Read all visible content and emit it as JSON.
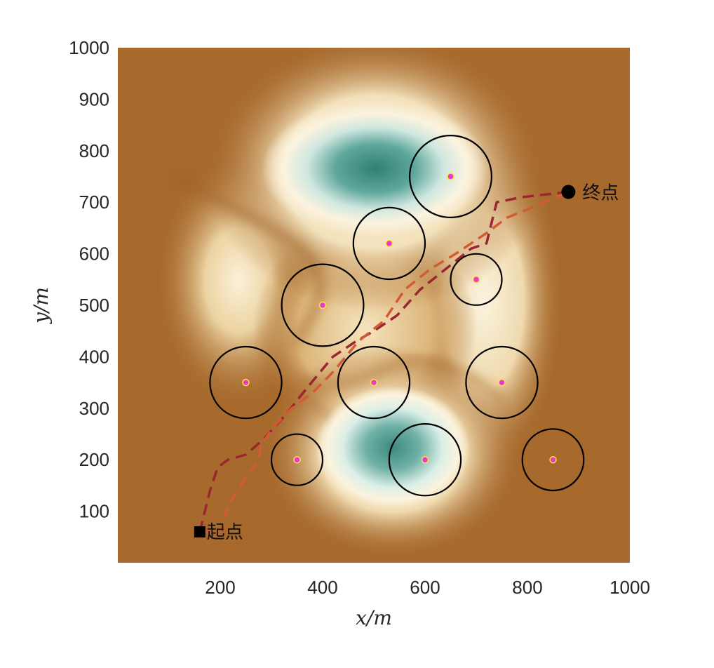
{
  "chart_data": {
    "type": "scatter",
    "title": "",
    "xlabel": "x/m",
    "ylabel": "y/m",
    "xlim": [
      0,
      1000
    ],
    "ylim": [
      0,
      1000
    ],
    "x_ticks": [
      200,
      400,
      600,
      800,
      1000
    ],
    "y_ticks": [
      100,
      200,
      300,
      400,
      500,
      600,
      700,
      800,
      900,
      1000
    ],
    "background": "terrain heatmap",
    "colors": {
      "terrain_low": "#a76a2c",
      "terrain_mid": "#fbf3df",
      "terrain_high": "#2f8074",
      "path_1": "#9b2530",
      "path_2": "#d45a33",
      "obstacle_ring": "#000000",
      "obstacle_center": "#e83ad0",
      "obstacle_center_edge": "#ffe040"
    },
    "obstacles": [
      {
        "x": 650,
        "y": 750,
        "r": 80
      },
      {
        "x": 530,
        "y": 620,
        "r": 70
      },
      {
        "x": 700,
        "y": 550,
        "r": 50
      },
      {
        "x": 400,
        "y": 500,
        "r": 80
      },
      {
        "x": 250,
        "y": 350,
        "r": 70
      },
      {
        "x": 500,
        "y": 350,
        "r": 70
      },
      {
        "x": 750,
        "y": 350,
        "r": 70
      },
      {
        "x": 350,
        "y": 200,
        "r": 50
      },
      {
        "x": 600,
        "y": 200,
        "r": 70
      },
      {
        "x": 850,
        "y": 200,
        "r": 60
      }
    ],
    "series": [
      {
        "x": [
          160,
          170,
          180,
          195,
          215,
          250,
          285,
          330,
          370,
          420,
          465,
          500,
          545,
          590,
          640,
          690,
          720,
          740,
          790,
          880
        ],
        "y": [
          60,
          100,
          140,
          185,
          200,
          210,
          240,
          290,
          340,
          400,
          430,
          450,
          480,
          530,
          570,
          610,
          620,
          700,
          710,
          720
        ]
      },
      {
        "x": [
          160,
          200,
          215,
          240,
          275,
          280,
          310,
          340,
          380,
          420,
          470,
          520,
          560,
          610,
          660,
          720,
          760,
          810,
          880
        ],
        "y": [
          60,
          60,
          110,
          150,
          200,
          230,
          270,
          300,
          330,
          370,
          430,
          470,
          530,
          570,
          600,
          640,
          670,
          690,
          720
        ]
      }
    ],
    "start": {
      "x": 160,
      "y": 60,
      "label": "起点"
    },
    "end": {
      "x": 880,
      "y": 720,
      "label": "终点"
    }
  }
}
